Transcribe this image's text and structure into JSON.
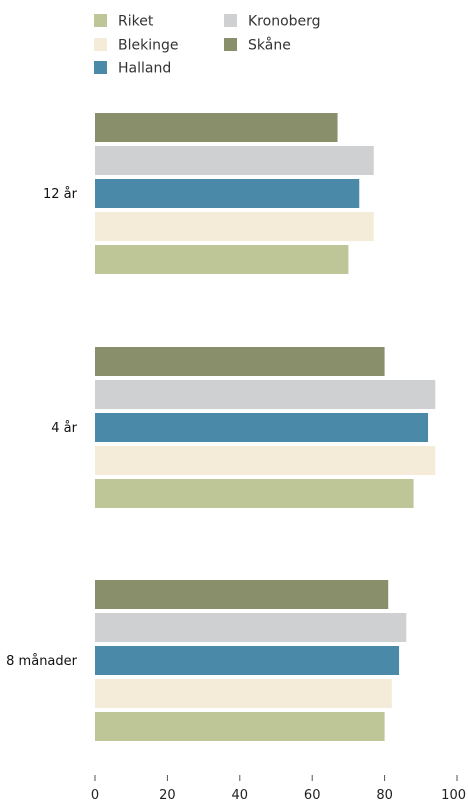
{
  "chart_data": {
    "type": "bar",
    "orientation": "horizontal",
    "categories": [
      "12 år",
      "4 år",
      "8 månader"
    ],
    "series": [
      {
        "name": "Skåne",
        "color": "#8a8f6b",
        "values": [
          67,
          80,
          81
        ]
      },
      {
        "name": "Kronoberg",
        "color": "#cfd0d2",
        "values": [
          77,
          94,
          86
        ]
      },
      {
        "name": "Halland",
        "color": "#4a89a8",
        "values": [
          73,
          92,
          84
        ]
      },
      {
        "name": "Blekinge",
        "color": "#f4ecd8",
        "values": [
          77,
          94,
          82
        ]
      },
      {
        "name": "Riket",
        "color": "#bec698",
        "values": [
          70,
          88,
          80
        ]
      }
    ],
    "legend": [
      {
        "name": "Riket",
        "color": "#bec698"
      },
      {
        "name": "Kronoberg",
        "color": "#cfd0d2"
      },
      {
        "name": "Blekinge",
        "color": "#f4ecd8"
      },
      {
        "name": "Skåne",
        "color": "#8a8f6b"
      },
      {
        "name": "Halland",
        "color": "#4a89a8"
      }
    ],
    "legend_position": "top-left",
    "xlim": [
      0,
      100
    ],
    "xticks": [
      0,
      20,
      40,
      60,
      80,
      100
    ],
    "title": "",
    "xlabel": "",
    "ylabel": "",
    "grid": false
  }
}
